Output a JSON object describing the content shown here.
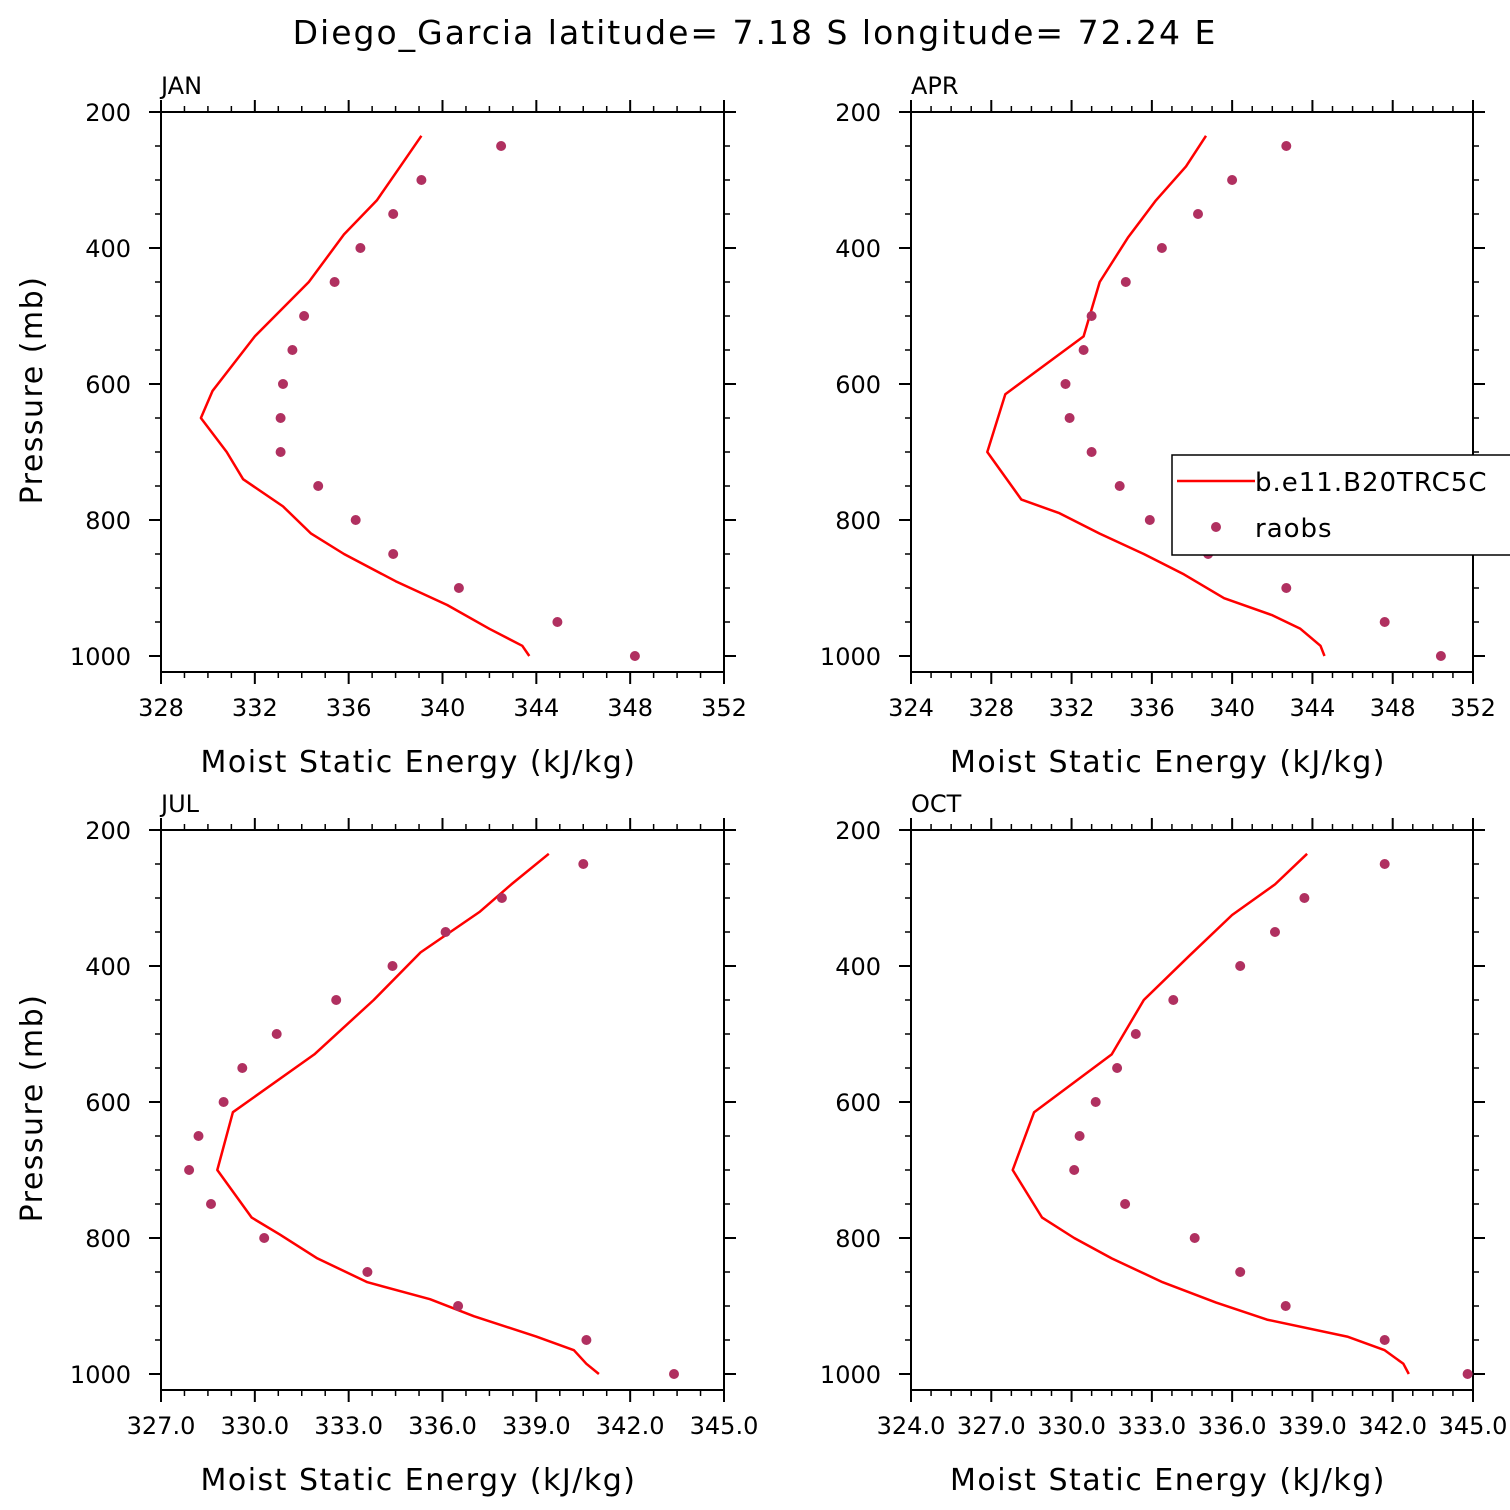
{
  "title": "Diego_Garcia  latitude= 7.18 S longitude= 72.24 E",
  "colors": {
    "model_line": "#ff0000",
    "raobs_dots": "#b03060",
    "axes": "#000000"
  },
  "legend": {
    "placement": "right-middle of APR panel",
    "entries": [
      {
        "label": "b.e11.B20TRC5C",
        "style": "line",
        "color": "#ff0000"
      },
      {
        "label": "raobs",
        "style": "dot",
        "color": "#b03060"
      }
    ]
  },
  "chart_data": [
    {
      "type": "line+scatter",
      "panel_label": "JAN",
      "xlabel": "Moist Static Energy (kJ/kg)",
      "ylabel": "Pressure (mb)",
      "xlim": [
        328,
        352
      ],
      "xticks": [
        "328",
        "332",
        "336",
        "340",
        "344",
        "348",
        "352"
      ],
      "ylim": [
        1000,
        200
      ],
      "yticks": [
        "200",
        "400",
        "600",
        "800",
        "1000"
      ],
      "series": [
        {
          "name": "b.e11.B20TRC5C",
          "style": "line",
          "x": [
            343.7,
            343.4,
            342.0,
            340.2,
            338.0,
            335.8,
            334.4,
            333.2,
            331.5,
            330.8,
            329.7,
            330.2,
            332.0,
            334.3,
            335.8,
            337.2,
            338.2,
            339.1
          ],
          "y": [
            1000,
            985,
            960,
            925,
            890,
            850,
            820,
            780,
            740,
            700,
            650,
            610,
            530,
            450,
            380,
            330,
            280,
            235
          ]
        },
        {
          "name": "raobs",
          "style": "dots",
          "x": [
            348.2,
            344.9,
            340.7,
            337.9,
            336.3,
            334.7,
            333.1,
            333.1,
            333.2,
            333.6,
            334.1,
            335.4,
            336.5,
            337.9,
            339.1,
            342.5
          ],
          "y": [
            1000,
            950,
            900,
            850,
            800,
            750,
            700,
            650,
            600,
            550,
            500,
            450,
            400,
            350,
            300,
            250
          ]
        }
      ]
    },
    {
      "type": "line+scatter",
      "panel_label": "APR",
      "xlabel": "Moist Static Energy (kJ/kg)",
      "ylabel": "",
      "xlim": [
        324,
        352
      ],
      "xticks": [
        "324",
        "328",
        "332",
        "336",
        "340",
        "344",
        "348",
        "352"
      ],
      "ylim": [
        1000,
        200
      ],
      "yticks": [
        "200",
        "400",
        "600",
        "800",
        "1000"
      ],
      "series": [
        {
          "name": "b.e11.B20TRC5C",
          "style": "line",
          "x": [
            344.6,
            344.4,
            343.4,
            342.0,
            339.6,
            337.6,
            335.6,
            333.4,
            331.4,
            329.5,
            327.8,
            328.7,
            332.6,
            333.4,
            334.8,
            336.2,
            337.7,
            338.7
          ],
          "y": [
            1000,
            985,
            960,
            940,
            915,
            880,
            850,
            820,
            790,
            770,
            700,
            615,
            530,
            450,
            385,
            330,
            280,
            235
          ]
        },
        {
          "name": "raobs",
          "style": "dots",
          "x": [
            350.4,
            347.6,
            342.7,
            338.8,
            335.9,
            334.4,
            333.0,
            331.9,
            331.7,
            332.6,
            333.0,
            334.7,
            336.5,
            338.3,
            340.0,
            342.7
          ],
          "y": [
            1000,
            950,
            900,
            850,
            800,
            750,
            700,
            650,
            600,
            550,
            500,
            450,
            400,
            350,
            300,
            250
          ]
        }
      ]
    },
    {
      "type": "line+scatter",
      "panel_label": "JUL",
      "xlabel": "Moist Static Energy (kJ/kg)",
      "ylabel": "Pressure (mb)",
      "xlim": [
        327.0,
        345.0
      ],
      "xticks": [
        "327.0",
        "330.0",
        "333.0",
        "336.0",
        "339.0",
        "342.0",
        "345.0"
      ],
      "ylim": [
        1000,
        200
      ],
      "yticks": [
        "200",
        "400",
        "600",
        "800",
        "1000"
      ],
      "series": [
        {
          "name": "b.e11.B20TRC5C",
          "style": "line",
          "x": [
            341.0,
            340.6,
            340.2,
            339.0,
            337.0,
            335.6,
            333.6,
            332.0,
            330.8,
            329.9,
            328.8,
            329.3,
            331.9,
            333.8,
            335.3,
            337.2,
            338.2,
            339.4
          ],
          "y": [
            1000,
            985,
            965,
            945,
            915,
            890,
            865,
            830,
            795,
            770,
            700,
            615,
            530,
            450,
            380,
            320,
            280,
            235
          ]
        },
        {
          "name": "raobs",
          "style": "dots",
          "x": [
            343.4,
            340.6,
            336.5,
            333.6,
            330.3,
            328.6,
            327.9,
            328.2,
            329.0,
            329.6,
            330.7,
            332.6,
            334.4,
            336.1,
            337.9,
            340.5
          ],
          "y": [
            1000,
            950,
            900,
            850,
            800,
            750,
            700,
            650,
            600,
            550,
            500,
            450,
            400,
            350,
            300,
            250
          ]
        }
      ]
    },
    {
      "type": "line+scatter",
      "panel_label": "OCT",
      "xlabel": "Moist Static Energy (kJ/kg)",
      "ylabel": "",
      "xlim": [
        324.0,
        345.0
      ],
      "xticks": [
        "324.0",
        "327.0",
        "330.0",
        "333.0",
        "336.0",
        "339.0",
        "342.0",
        "345.0"
      ],
      "ylim": [
        1000,
        200
      ],
      "yticks": [
        "200",
        "400",
        "600",
        "800",
        "1000"
      ],
      "series": [
        {
          "name": "b.e11.B20TRC5C",
          "style": "line",
          "x": [
            342.6,
            342.4,
            341.7,
            340.3,
            337.3,
            335.4,
            333.4,
            331.5,
            330.1,
            328.9,
            327.8,
            328.6,
            331.5,
            332.7,
            334.4,
            336.0,
            337.6,
            338.8
          ],
          "y": [
            1000,
            985,
            965,
            945,
            920,
            895,
            865,
            830,
            800,
            770,
            700,
            615,
            530,
            450,
            385,
            325,
            280,
            235
          ]
        },
        {
          "name": "raobs",
          "style": "dots",
          "x": [
            344.8,
            341.7,
            338.0,
            336.3,
            334.6,
            332.0,
            330.1,
            330.3,
            330.9,
            331.7,
            332.4,
            333.8,
            336.3,
            337.6,
            338.7,
            341.7
          ],
          "y": [
            1000,
            950,
            900,
            850,
            800,
            750,
            700,
            650,
            600,
            550,
            500,
            450,
            400,
            350,
            300,
            250
          ]
        }
      ]
    }
  ]
}
